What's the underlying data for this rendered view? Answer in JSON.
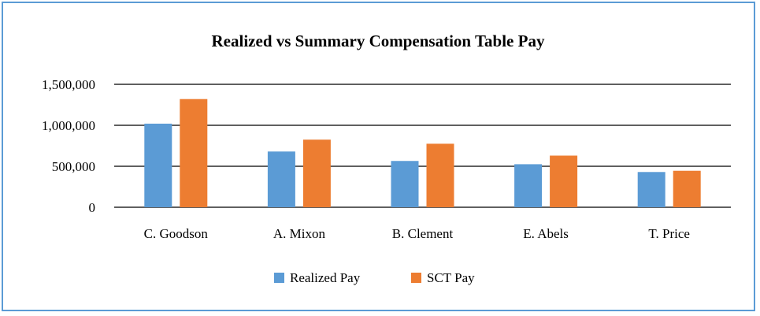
{
  "chart_data": {
    "type": "bar",
    "title": "Realized vs Summary Compensation Table Pay",
    "xlabel": "",
    "ylabel": "",
    "categories": [
      "C. Goodson",
      "A. Mixon",
      "B. Clement",
      "E. Abels",
      "T. Price"
    ],
    "series": [
      {
        "name": "Realized Pay",
        "values": [
          1020000,
          680000,
          565000,
          525000,
          430000
        ]
      },
      {
        "name": "SCT Pay",
        "values": [
          1320000,
          825000,
          775000,
          630000,
          445000
        ]
      }
    ],
    "ylim": [
      0,
      1500000
    ],
    "yticks": [
      0,
      500000,
      1000000,
      1500000
    ],
    "ytick_labels": [
      "0",
      "500,000",
      "1,000,000",
      "1,500,000"
    ],
    "grid": true,
    "legend_position": "bottom",
    "colors": {
      "series": [
        "#5b9bd5",
        "#ed7d31"
      ],
      "frame": "#5b9bd5",
      "grid": "#000000"
    }
  }
}
